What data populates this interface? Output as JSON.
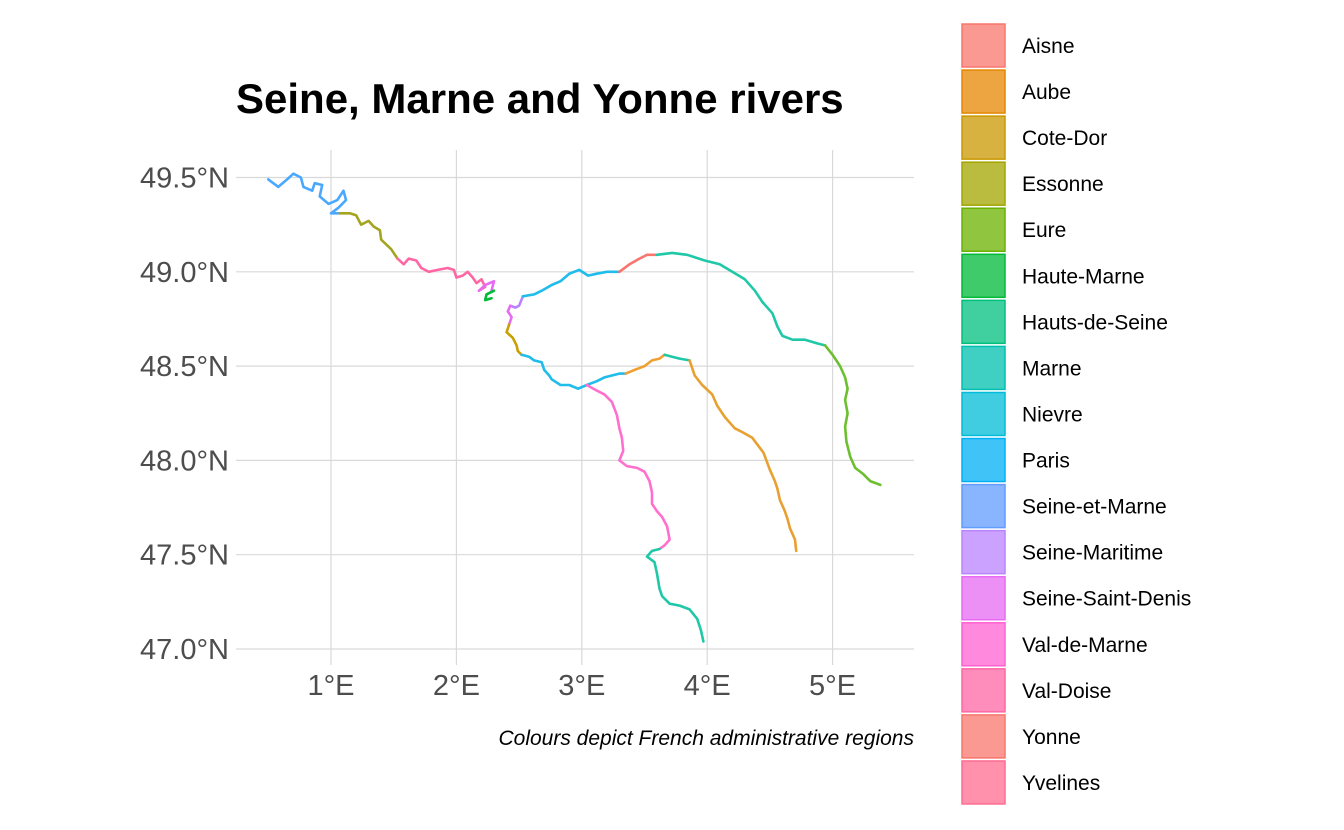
{
  "chart_data": {
    "type": "map",
    "title": "Seine, Marne and Yonne rivers",
    "caption": "Colours depict French administrative regions",
    "x_ticks": [
      "1°E",
      "2°E",
      "3°E",
      "4°E",
      "5°E"
    ],
    "x_tick_values": [
      1,
      2,
      3,
      4,
      5
    ],
    "y_ticks": [
      "47.0°N",
      "47.5°N",
      "48.0°N",
      "48.5°N",
      "49.0°N",
      "49.5°N"
    ],
    "y_tick_values": [
      47.0,
      47.5,
      48.0,
      48.5,
      49.0,
      49.5
    ],
    "xlim": [
      0.2,
      5.66
    ],
    "ylim": [
      46.95,
      49.65
    ],
    "grid": true,
    "legend_position": "right",
    "legend": [
      {
        "name": "Aisne",
        "color": "#F8766D"
      },
      {
        "name": "Aube",
        "color": "#E58700"
      },
      {
        "name": "Cote-Dor",
        "color": "#C99800"
      },
      {
        "name": "Essonne",
        "color": "#A3A500"
      },
      {
        "name": "Eure",
        "color": "#6BB100"
      },
      {
        "name": "Haute-Marne",
        "color": "#00BA38"
      },
      {
        "name": "Hauts-de-Seine",
        "color": "#00BF7D"
      },
      {
        "name": "Marne",
        "color": "#00C0AF"
      },
      {
        "name": "Nievre",
        "color": "#00BCD8"
      },
      {
        "name": "Paris",
        "color": "#00B0F6"
      },
      {
        "name": "Seine-et-Marne",
        "color": "#619CFF"
      },
      {
        "name": "Seine-Maritime",
        "color": "#B983FF"
      },
      {
        "name": "Seine-Saint-Denis",
        "color": "#E76BF3"
      },
      {
        "name": "Val-de-Marne",
        "color": "#FD61D1"
      },
      {
        "name": "Val-Doise",
        "color": "#FF67A4"
      },
      {
        "name": "Yonne",
        "color": "#F8766D"
      },
      {
        "name": "Yvelines",
        "color": "#FF6C91"
      }
    ],
    "rivers": [
      {
        "color": "#4aa8ff",
        "points": [
          [
            0.5,
            49.49
          ],
          [
            0.58,
            49.45
          ],
          [
            0.65,
            49.49
          ],
          [
            0.7,
            49.52
          ],
          [
            0.76,
            49.5
          ],
          [
            0.78,
            49.45
          ],
          [
            0.85,
            49.43
          ],
          [
            0.87,
            49.47
          ],
          [
            0.93,
            49.46
          ],
          [
            0.91,
            49.4
          ],
          [
            0.98,
            49.36
          ],
          [
            1.05,
            49.38
          ],
          [
            1.1,
            49.43
          ],
          [
            1.12,
            49.38
          ],
          [
            1.06,
            49.34
          ],
          [
            1.0,
            49.31
          ],
          [
            1.07,
            49.31
          ]
        ]
      },
      {
        "color": "#a3a520",
        "points": [
          [
            1.07,
            49.31
          ],
          [
            1.15,
            49.31
          ],
          [
            1.2,
            49.3
          ],
          [
            1.24,
            49.25
          ],
          [
            1.3,
            49.27
          ],
          [
            1.34,
            49.24
          ],
          [
            1.39,
            49.22
          ],
          [
            1.4,
            49.17
          ],
          [
            1.48,
            49.12
          ],
          [
            1.53,
            49.07
          ]
        ]
      },
      {
        "color": "#ff67a4",
        "points": [
          [
            1.53,
            49.07
          ],
          [
            1.58,
            49.04
          ],
          [
            1.62,
            49.07
          ],
          [
            1.68,
            49.06
          ],
          [
            1.72,
            49.02
          ],
          [
            1.78,
            49.0
          ],
          [
            1.85,
            49.01
          ],
          [
            1.93,
            49.02
          ],
          [
            1.98,
            49.01
          ],
          [
            2.0,
            48.97
          ],
          [
            2.05,
            48.98
          ],
          [
            2.09,
            49.0
          ],
          [
            2.13,
            48.97
          ],
          [
            2.16,
            48.94
          ],
          [
            2.2,
            48.96
          ],
          [
            2.23,
            48.92
          ],
          [
            2.18,
            48.9
          ]
        ]
      },
      {
        "color": "#e76bf3",
        "points": [
          [
            2.18,
            48.9
          ],
          [
            2.23,
            48.93
          ],
          [
            2.3,
            48.95
          ],
          [
            2.28,
            48.9
          ]
        ]
      },
      {
        "color": "#00ba38",
        "points": [
          [
            2.3,
            48.9
          ],
          [
            2.24,
            48.88
          ],
          [
            2.23,
            48.85
          ],
          [
            2.28,
            48.86
          ]
        ]
      },
      {
        "color": "#b983ff",
        "points": [
          [
            2.43,
            48.82
          ],
          [
            2.47,
            48.81
          ],
          [
            2.5,
            48.82
          ],
          [
            2.53,
            48.87
          ]
        ]
      },
      {
        "color": "#e76bf3",
        "points": [
          [
            2.43,
            48.82
          ],
          [
            2.41,
            48.79
          ],
          [
            2.44,
            48.76
          ],
          [
            2.42,
            48.72
          ]
        ]
      },
      {
        "color": "#c9a000",
        "points": [
          [
            2.42,
            48.72
          ],
          [
            2.4,
            48.68
          ],
          [
            2.45,
            48.65
          ],
          [
            2.48,
            48.61
          ],
          [
            2.49,
            48.58
          ],
          [
            2.52,
            48.56
          ]
        ]
      },
      {
        "color": "#20bcec",
        "points": [
          [
            2.52,
            48.56
          ],
          [
            2.58,
            48.55
          ],
          [
            2.62,
            48.53
          ],
          [
            2.68,
            48.52
          ],
          [
            2.7,
            48.48
          ],
          [
            2.74,
            48.45
          ],
          [
            2.76,
            48.43
          ],
          [
            2.83,
            48.4
          ],
          [
            2.9,
            48.4
          ],
          [
            2.97,
            48.38
          ],
          [
            3.04,
            48.4
          ],
          [
            3.12,
            48.42
          ],
          [
            3.18,
            48.44
          ],
          [
            3.24,
            48.45
          ],
          [
            3.3,
            48.46
          ],
          [
            3.35,
            48.46
          ]
        ]
      },
      {
        "color": "#f0a030",
        "points": [
          [
            3.35,
            48.46
          ],
          [
            3.42,
            48.48
          ],
          [
            3.5,
            48.5
          ],
          [
            3.56,
            48.53
          ],
          [
            3.62,
            48.54
          ],
          [
            3.66,
            48.56
          ]
        ]
      },
      {
        "color": "#20c8a8",
        "points": [
          [
            3.66,
            48.56
          ],
          [
            3.72,
            48.55
          ],
          [
            3.78,
            48.54
          ],
          [
            3.86,
            48.53
          ]
        ]
      },
      {
        "color": "#e8a030",
        "points": [
          [
            3.86,
            48.53
          ],
          [
            3.9,
            48.45
          ],
          [
            3.96,
            48.4
          ],
          [
            4.04,
            48.35
          ],
          [
            4.08,
            48.29
          ],
          [
            4.14,
            48.23
          ],
          [
            4.22,
            48.17
          ],
          [
            4.28,
            48.15
          ],
          [
            4.36,
            48.12
          ],
          [
            4.45,
            48.04
          ],
          [
            4.5,
            47.95
          ],
          [
            4.54,
            47.89
          ],
          [
            4.56,
            47.85
          ],
          [
            4.58,
            47.79
          ],
          [
            4.62,
            47.73
          ],
          [
            4.64,
            47.69
          ],
          [
            4.66,
            47.64
          ],
          [
            4.7,
            47.58
          ],
          [
            4.71,
            47.52
          ]
        ]
      },
      {
        "color": "#20bcec",
        "points": [
          [
            2.53,
            48.87
          ],
          [
            2.62,
            48.88
          ],
          [
            2.68,
            48.9
          ],
          [
            2.76,
            48.93
          ],
          [
            2.83,
            48.95
          ],
          [
            2.9,
            48.99
          ],
          [
            2.98,
            49.01
          ],
          [
            3.05,
            48.98
          ],
          [
            3.12,
            48.99
          ],
          [
            3.2,
            49.0
          ],
          [
            3.3,
            49.0
          ]
        ]
      },
      {
        "color": "#f8766d",
        "points": [
          [
            3.3,
            49.0
          ],
          [
            3.38,
            49.04
          ],
          [
            3.46,
            49.07
          ],
          [
            3.52,
            49.09
          ],
          [
            3.6,
            49.09
          ]
        ]
      },
      {
        "color": "#20c8a8",
        "points": [
          [
            3.6,
            49.09
          ],
          [
            3.72,
            49.1
          ],
          [
            3.84,
            49.09
          ],
          [
            3.98,
            49.06
          ],
          [
            4.1,
            49.04
          ],
          [
            4.2,
            49.0
          ],
          [
            4.3,
            48.96
          ],
          [
            4.38,
            48.9
          ],
          [
            4.44,
            48.84
          ],
          [
            4.52,
            48.78
          ],
          [
            4.56,
            48.71
          ],
          [
            4.6,
            48.66
          ],
          [
            4.68,
            48.64
          ],
          [
            4.78,
            48.64
          ],
          [
            4.88,
            48.62
          ],
          [
            4.94,
            48.61
          ]
        ]
      },
      {
        "color": "#6cc030",
        "points": [
          [
            4.94,
            48.61
          ],
          [
            5.0,
            48.56
          ],
          [
            5.06,
            48.5
          ],
          [
            5.1,
            48.44
          ],
          [
            5.12,
            48.38
          ],
          [
            5.1,
            48.32
          ],
          [
            5.12,
            48.25
          ],
          [
            5.1,
            48.18
          ],
          [
            5.11,
            48.1
          ],
          [
            5.14,
            48.02
          ],
          [
            5.18,
            47.96
          ],
          [
            5.24,
            47.93
          ],
          [
            5.3,
            47.89
          ],
          [
            5.38,
            47.87
          ]
        ]
      },
      {
        "color": "#ff6fce",
        "points": [
          [
            3.04,
            48.4
          ],
          [
            3.12,
            48.37
          ],
          [
            3.18,
            48.35
          ],
          [
            3.24,
            48.31
          ],
          [
            3.28,
            48.24
          ],
          [
            3.3,
            48.17
          ],
          [
            3.32,
            48.12
          ],
          [
            3.33,
            48.05
          ],
          [
            3.3,
            48.0
          ],
          [
            3.36,
            47.97
          ],
          [
            3.44,
            47.96
          ],
          [
            3.5,
            47.94
          ],
          [
            3.54,
            47.89
          ],
          [
            3.56,
            47.83
          ],
          [
            3.56,
            47.77
          ],
          [
            3.6,
            47.73
          ],
          [
            3.64,
            47.7
          ],
          [
            3.68,
            47.65
          ],
          [
            3.7,
            47.58
          ],
          [
            3.66,
            47.55
          ],
          [
            3.62,
            47.53
          ]
        ]
      },
      {
        "color": "#20c8a8",
        "points": [
          [
            3.62,
            47.53
          ],
          [
            3.56,
            47.52
          ],
          [
            3.52,
            47.49
          ],
          [
            3.58,
            47.46
          ],
          [
            3.6,
            47.4
          ],
          [
            3.62,
            47.32
          ],
          [
            3.64,
            47.28
          ],
          [
            3.7,
            47.24
          ],
          [
            3.78,
            47.23
          ],
          [
            3.86,
            47.21
          ],
          [
            3.92,
            47.16
          ],
          [
            3.95,
            47.1
          ],
          [
            3.97,
            47.04
          ]
        ]
      }
    ]
  }
}
